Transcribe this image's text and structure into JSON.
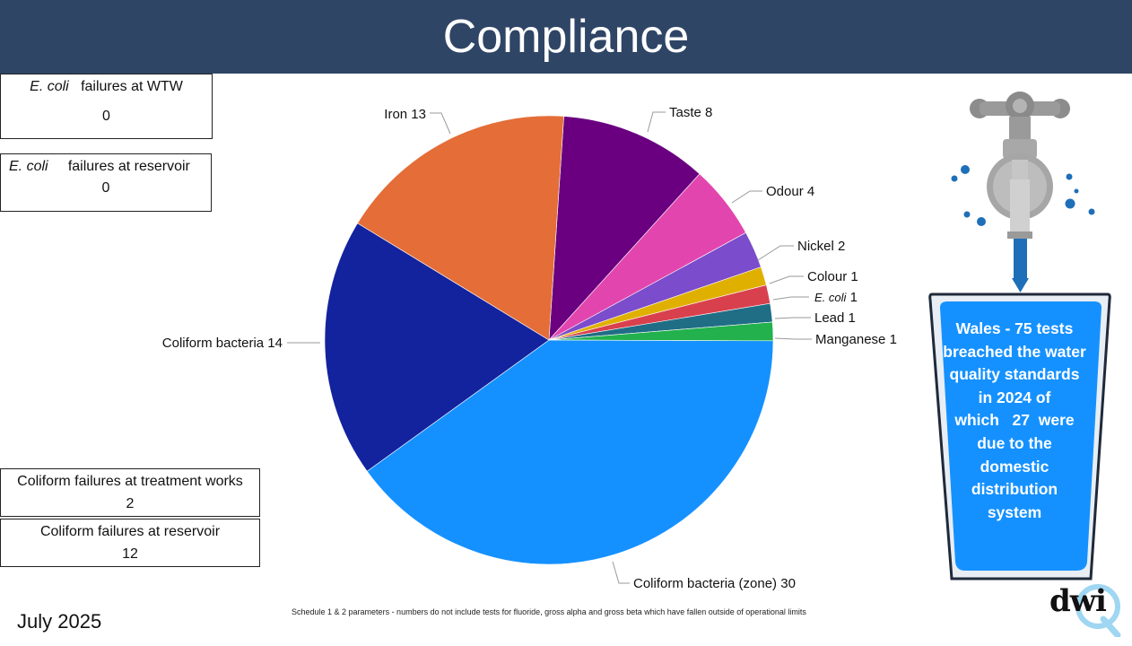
{
  "header": {
    "title": "Compliance"
  },
  "boxes": {
    "ecoli_wtw": {
      "label_italic": "E. coli",
      "label_rest": "failures at WTW",
      "value": "0"
    },
    "ecoli_reservoir": {
      "label_italic": "E. coli",
      "label_rest": "failures at reservoir",
      "value": "0"
    },
    "coliform_treatment": {
      "label": "Coliform failures at treatment works",
      "value": "2"
    },
    "coliform_reservoir": {
      "label": "Coliform failures at reservoir",
      "value": "12"
    }
  },
  "chart_data": {
    "type": "pie",
    "title": "",
    "slices": [
      {
        "label": "Taste",
        "value": 8,
        "color": "#6a0080"
      },
      {
        "label": "Odour",
        "value": 4,
        "color": "#e246ae"
      },
      {
        "label": "Nickel",
        "value": 2,
        "color": "#7b4ccb"
      },
      {
        "label": "Colour",
        "value": 1,
        "color": "#e0b000"
      },
      {
        "label": "E. coli",
        "value": 1,
        "color": "#d9404e",
        "italic": true
      },
      {
        "label": "Lead",
        "value": 1,
        "color": "#1f6e86"
      },
      {
        "label": "Manganese",
        "value": 1,
        "color": "#22b14c"
      },
      {
        "label": "Coliform bacteria (zone)",
        "value": 30,
        "color": "#1591ff"
      },
      {
        "label": "Coliform bacteria",
        "value": 14,
        "color": "#13239e"
      },
      {
        "label": "Iron",
        "value": 13,
        "color": "#e46d38"
      }
    ]
  },
  "glass": {
    "lines": [
      "Wales - 75 tests",
      "breached the water",
      "quality standards",
      "in 2024 of",
      "which   27  were",
      "due to the",
      "domestic",
      "distribution",
      "system"
    ]
  },
  "footer": {
    "note": "Schedule 1 & 2 parameters - numbers do not include tests for fluoride, gross alpha and gross beta which have fallen outside of operational limits",
    "date": "July 2025"
  },
  "logo": {
    "text": "dwi"
  },
  "colors": {
    "header_bg": "#2f4566",
    "glass_fill": "#1591ff"
  }
}
